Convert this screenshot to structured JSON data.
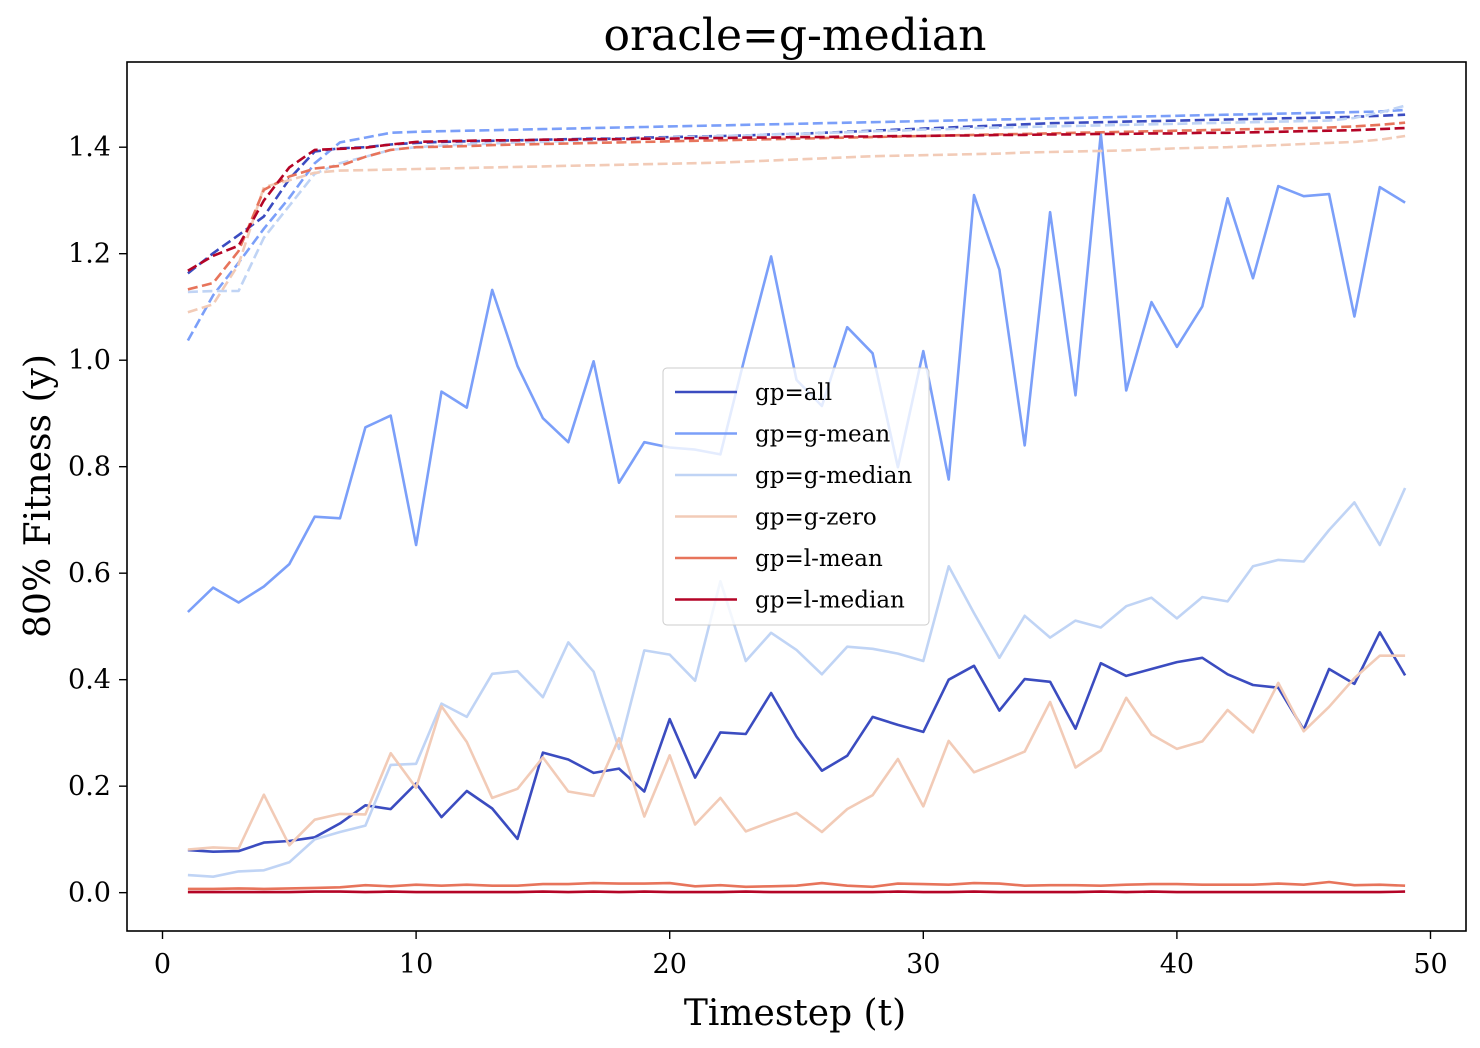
{
  "chart_data": {
    "type": "line",
    "title": "oracle=g-median",
    "xlabel": "Timestep (t)",
    "ylabel": "80% Fitness (y)",
    "xlim": [
      -1.4,
      51.4
    ],
    "ylim": [
      -0.072,
      1.56
    ],
    "xticks": [
      0,
      10,
      20,
      30,
      40,
      50
    ],
    "yticks": [
      0.0,
      0.2,
      0.4,
      0.6,
      0.8,
      1.0,
      1.2,
      1.4
    ],
    "ytick_labels": [
      "0.0",
      "0.2",
      "0.4",
      "0.6",
      "0.8",
      "1.0",
      "1.2",
      "1.4"
    ],
    "grid": false,
    "legend_placement": "center",
    "x": [
      1,
      2,
      3,
      4,
      5,
      6,
      7,
      8,
      9,
      10,
      11,
      12,
      13,
      14,
      15,
      16,
      17,
      18,
      19,
      20,
      21,
      22,
      23,
      24,
      25,
      26,
      27,
      28,
      29,
      30,
      31,
      32,
      33,
      34,
      35,
      36,
      37,
      38,
      39,
      40,
      41,
      42,
      43,
      44,
      45,
      46,
      47,
      48,
      49
    ],
    "series": [
      {
        "name": "gp=all",
        "color": "#3b4cc0",
        "style": "solid",
        "values": [
          0.08,
          0.077,
          0.078,
          0.094,
          0.097,
          0.104,
          0.13,
          0.164,
          0.157,
          0.205,
          0.142,
          0.191,
          0.158,
          0.101,
          0.263,
          0.25,
          0.225,
          0.233,
          0.19,
          0.326,
          0.216,
          0.301,
          0.298,
          0.375,
          0.293,
          0.229,
          0.257,
          0.33,
          0.315,
          0.302,
          0.4,
          0.426,
          0.342,
          0.401,
          0.396,
          0.308,
          0.431,
          0.407,
          0.42,
          0.433,
          0.441,
          0.41,
          0.39,
          0.385,
          0.306,
          0.42,
          0.392,
          0.489,
          0.408
        ]
      },
      {
        "name": "gp=g-mean",
        "color": "#7b9ff9",
        "style": "solid",
        "values": [
          0.527,
          0.573,
          0.545,
          0.575,
          0.617,
          0.706,
          0.703,
          0.874,
          0.896,
          0.653,
          0.941,
          0.911,
          1.132,
          0.989,
          0.891,
          0.846,
          0.998,
          0.77,
          0.846,
          0.836,
          0.832,
          0.823,
          1.013,
          1.195,
          0.963,
          0.914,
          1.062,
          1.013,
          0.799,
          1.017,
          0.776,
          1.31,
          1.17,
          0.84,
          1.278,
          0.934,
          1.425,
          0.943,
          1.109,
          1.025,
          1.101,
          1.304,
          1.154,
          1.327,
          1.308,
          1.312,
          1.082,
          1.325,
          1.296
        ]
      },
      {
        "name": "gp=g-median",
        "color": "#c0d4f5",
        "style": "solid",
        "values": [
          0.033,
          0.03,
          0.04,
          0.042,
          0.057,
          0.1,
          0.114,
          0.126,
          0.24,
          0.242,
          0.355,
          0.33,
          0.411,
          0.416,
          0.367,
          0.47,
          0.415,
          0.27,
          0.455,
          0.447,
          0.398,
          0.585,
          0.435,
          0.488,
          0.456,
          0.41,
          0.462,
          0.458,
          0.449,
          0.435,
          0.613,
          0.525,
          0.441,
          0.52,
          0.479,
          0.511,
          0.498,
          0.538,
          0.554,
          0.515,
          0.555,
          0.547,
          0.613,
          0.625,
          0.622,
          0.681,
          0.733,
          0.653,
          0.76
        ]
      },
      {
        "name": "gp=g-zero",
        "color": "#f2cbb7",
        "style": "solid",
        "values": [
          0.081,
          0.085,
          0.083,
          0.184,
          0.089,
          0.137,
          0.148,
          0.147,
          0.262,
          0.197,
          0.35,
          0.283,
          0.178,
          0.195,
          0.254,
          0.19,
          0.182,
          0.29,
          0.143,
          0.258,
          0.128,
          0.178,
          0.115,
          0.133,
          0.15,
          0.114,
          0.157,
          0.183,
          0.251,
          0.162,
          0.285,
          0.226,
          0.245,
          0.265,
          0.358,
          0.235,
          0.267,
          0.366,
          0.297,
          0.27,
          0.284,
          0.343,
          0.301,
          0.394,
          0.303,
          0.349,
          0.403,
          0.445,
          0.445
        ]
      },
      {
        "name": "gp=l-mean",
        "color": "#e7745b",
        "style": "solid",
        "values": [
          0.007,
          0.007,
          0.008,
          0.007,
          0.008,
          0.009,
          0.01,
          0.014,
          0.012,
          0.015,
          0.013,
          0.015,
          0.013,
          0.013,
          0.016,
          0.016,
          0.018,
          0.017,
          0.017,
          0.018,
          0.012,
          0.014,
          0.011,
          0.012,
          0.013,
          0.018,
          0.013,
          0.011,
          0.017,
          0.016,
          0.015,
          0.018,
          0.017,
          0.013,
          0.014,
          0.014,
          0.013,
          0.015,
          0.016,
          0.016,
          0.015,
          0.015,
          0.015,
          0.017,
          0.015,
          0.02,
          0.014,
          0.015,
          0.013
        ]
      },
      {
        "name": "gp=l-median",
        "color": "#b40426",
        "style": "solid",
        "values": [
          0.001,
          0.001,
          0.001,
          0.001,
          0.001,
          0.002,
          0.002,
          0.001,
          0.002,
          0.001,
          0.001,
          0.001,
          0.001,
          0.001,
          0.002,
          0.001,
          0.002,
          0.001,
          0.002,
          0.001,
          0.001,
          0.001,
          0.002,
          0.001,
          0.001,
          0.001,
          0.001,
          0.001,
          0.002,
          0.001,
          0.001,
          0.002,
          0.001,
          0.001,
          0.001,
          0.001,
          0.002,
          0.001,
          0.002,
          0.001,
          0.001,
          0.001,
          0.001,
          0.001,
          0.001,
          0.001,
          0.001,
          0.001,
          0.002
        ]
      },
      {
        "color": "#3b4cc0",
        "style": "dashed",
        "values": [
          1.163,
          1.201,
          1.235,
          1.27,
          1.34,
          1.392,
          1.398,
          1.4,
          1.405,
          1.408,
          1.41,
          1.411,
          1.412,
          1.413,
          1.414,
          1.415,
          1.416,
          1.416,
          1.418,
          1.419,
          1.42,
          1.421,
          1.422,
          1.424,
          1.425,
          1.427,
          1.429,
          1.431,
          1.433,
          1.435,
          1.437,
          1.439,
          1.441,
          1.443,
          1.445,
          1.446,
          1.447,
          1.448,
          1.449,
          1.45,
          1.451,
          1.452,
          1.453,
          1.454,
          1.455,
          1.456,
          1.457,
          1.459,
          1.461
        ]
      },
      {
        "color": "#7b9ff9",
        "style": "dashed",
        "values": [
          1.037,
          1.122,
          1.183,
          1.247,
          1.305,
          1.37,
          1.409,
          1.418,
          1.427,
          1.429,
          1.43,
          1.431,
          1.432,
          1.433,
          1.434,
          1.435,
          1.436,
          1.437,
          1.438,
          1.439,
          1.44,
          1.441,
          1.442,
          1.443,
          1.444,
          1.445,
          1.446,
          1.447,
          1.448,
          1.449,
          1.45,
          1.451,
          1.452,
          1.453,
          1.454,
          1.455,
          1.456,
          1.457,
          1.458,
          1.459,
          1.46,
          1.461,
          1.462,
          1.463,
          1.464,
          1.465,
          1.466,
          1.467,
          1.47
        ]
      },
      {
        "color": "#c0d4f5",
        "style": "dashed",
        "values": [
          1.128,
          1.13,
          1.13,
          1.23,
          1.29,
          1.35,
          1.37,
          1.382,
          1.395,
          1.4,
          1.403,
          1.405,
          1.407,
          1.409,
          1.41,
          1.412,
          1.413,
          1.415,
          1.416,
          1.418,
          1.419,
          1.421,
          1.422,
          1.424,
          1.425,
          1.427,
          1.428,
          1.43,
          1.431,
          1.433,
          1.434,
          1.436,
          1.437,
          1.438,
          1.439,
          1.44,
          1.441,
          1.442,
          1.443,
          1.444,
          1.445,
          1.446,
          1.447,
          1.448,
          1.449,
          1.45,
          1.455,
          1.465,
          1.478
        ]
      },
      {
        "color": "#f2cbb7",
        "style": "dashed",
        "values": [
          1.09,
          1.105,
          1.18,
          1.325,
          1.338,
          1.352,
          1.356,
          1.357,
          1.358,
          1.359,
          1.36,
          1.361,
          1.362,
          1.363,
          1.364,
          1.365,
          1.366,
          1.367,
          1.368,
          1.369,
          1.37,
          1.371,
          1.373,
          1.375,
          1.377,
          1.379,
          1.381,
          1.383,
          1.384,
          1.385,
          1.386,
          1.387,
          1.388,
          1.39,
          1.391,
          1.392,
          1.393,
          1.394,
          1.396,
          1.398,
          1.399,
          1.4,
          1.402,
          1.404,
          1.406,
          1.408,
          1.41,
          1.414,
          1.421
        ]
      },
      {
        "color": "#e7745b",
        "style": "dashed",
        "values": [
          1.133,
          1.145,
          1.205,
          1.32,
          1.345,
          1.36,
          1.365,
          1.382,
          1.395,
          1.4,
          1.401,
          1.402,
          1.404,
          1.405,
          1.406,
          1.407,
          1.408,
          1.409,
          1.41,
          1.411,
          1.412,
          1.413,
          1.414,
          1.415,
          1.416,
          1.417,
          1.418,
          1.419,
          1.42,
          1.421,
          1.422,
          1.423,
          1.424,
          1.425,
          1.426,
          1.427,
          1.428,
          1.429,
          1.43,
          1.431,
          1.432,
          1.433,
          1.434,
          1.435,
          1.436,
          1.437,
          1.439,
          1.442,
          1.446
        ]
      },
      {
        "color": "#b40426",
        "style": "dashed",
        "values": [
          1.168,
          1.196,
          1.215,
          1.3,
          1.362,
          1.395,
          1.397,
          1.399,
          1.405,
          1.41,
          1.411,
          1.412,
          1.413,
          1.413,
          1.414,
          1.414,
          1.415,
          1.415,
          1.416,
          1.416,
          1.417,
          1.417,
          1.418,
          1.418,
          1.419,
          1.419,
          1.42,
          1.42,
          1.421,
          1.421,
          1.422,
          1.422,
          1.423,
          1.423,
          1.424,
          1.424,
          1.425,
          1.425,
          1.426,
          1.426,
          1.427,
          1.427,
          1.428,
          1.429,
          1.43,
          1.431,
          1.432,
          1.434,
          1.436
        ]
      }
    ]
  }
}
